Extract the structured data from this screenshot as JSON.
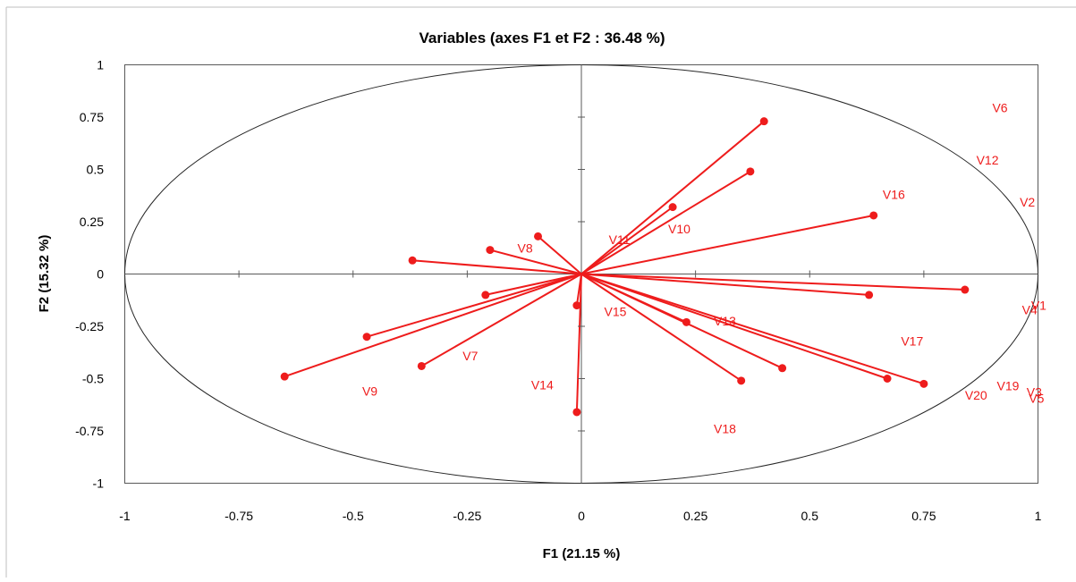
{
  "chart_data": {
    "type": "scatter",
    "title": "Variables (axes F1 et F2 : 36.48 %)",
    "xlabel": "F1 (21.15 %)",
    "ylabel": "F2 (15.32 %)",
    "xlim": [
      -1,
      1
    ],
    "ylim": [
      -1,
      1
    ],
    "x_ticks": [
      "-1",
      "-0.75",
      "-0.5",
      "-0.25",
      "0",
      "0.25",
      "0.5",
      "0.75",
      "1"
    ],
    "y_ticks": [
      "-1",
      "-0.75",
      "-0.5",
      "-0.25",
      "0",
      "0.25",
      "0.5",
      "0.75",
      "1"
    ],
    "grid": false,
    "unit_circle": true,
    "vectors_from_origin": true,
    "color": "#ee1c1c",
    "points": [
      {
        "x": 0.4,
        "y": 0.73
      },
      {
        "x": 0.37,
        "y": 0.49
      },
      {
        "x": 0.2,
        "y": 0.32
      },
      {
        "x": 0.64,
        "y": 0.28
      },
      {
        "x": -0.37,
        "y": 0.065
      },
      {
        "x": -0.2,
        "y": 0.115
      },
      {
        "x": -0.095,
        "y": 0.18
      },
      {
        "x": 0.84,
        "y": -0.075
      },
      {
        "x": 0.63,
        "y": -0.1
      },
      {
        "x": -0.21,
        "y": -0.1
      },
      {
        "x": -0.01,
        "y": -0.15
      },
      {
        "x": 0.23,
        "y": -0.23
      },
      {
        "x": -0.47,
        "y": -0.3
      },
      {
        "x": -0.35,
        "y": -0.44
      },
      {
        "x": 0.44,
        "y": -0.45
      },
      {
        "x": 0.35,
        "y": -0.51
      },
      {
        "x": 0.67,
        "y": -0.5
      },
      {
        "x": 0.75,
        "y": -0.525
      },
      {
        "x": -0.65,
        "y": -0.49
      },
      {
        "x": -0.01,
        "y": -0.66
      }
    ],
    "labels": [
      {
        "text": "V6",
        "x": 0.9,
        "y": 0.795
      },
      {
        "text": "V12",
        "x": 0.865,
        "y": 0.545
      },
      {
        "text": "V16",
        "x": 0.66,
        "y": 0.38
      },
      {
        "text": "V2",
        "x": 0.96,
        "y": 0.345
      },
      {
        "text": "V10",
        "x": 0.19,
        "y": 0.215
      },
      {
        "text": "V11",
        "x": 0.06,
        "y": 0.165
      },
      {
        "text": "V8",
        "x": -0.14,
        "y": 0.125
      },
      {
        "text": "V1",
        "x": 0.985,
        "y": -0.15
      },
      {
        "text": "V4",
        "x": 0.965,
        "y": -0.17
      },
      {
        "text": "V15",
        "x": 0.05,
        "y": -0.18
      },
      {
        "text": "V13",
        "x": 0.29,
        "y": -0.225
      },
      {
        "text": "V17",
        "x": 0.7,
        "y": -0.32
      },
      {
        "text": "V7",
        "x": -0.26,
        "y": -0.39
      },
      {
        "text": "V14",
        "x": -0.11,
        "y": -0.53
      },
      {
        "text": "V9",
        "x": -0.48,
        "y": -0.56
      },
      {
        "text": "V19",
        "x": 0.91,
        "y": -0.535
      },
      {
        "text": "V3",
        "x": 0.975,
        "y": -0.565
      },
      {
        "text": "V20",
        "x": 0.84,
        "y": -0.58
      },
      {
        "text": "V5",
        "x": 0.98,
        "y": -0.595
      },
      {
        "text": "V18",
        "x": 0.29,
        "y": -0.74
      }
    ]
  }
}
